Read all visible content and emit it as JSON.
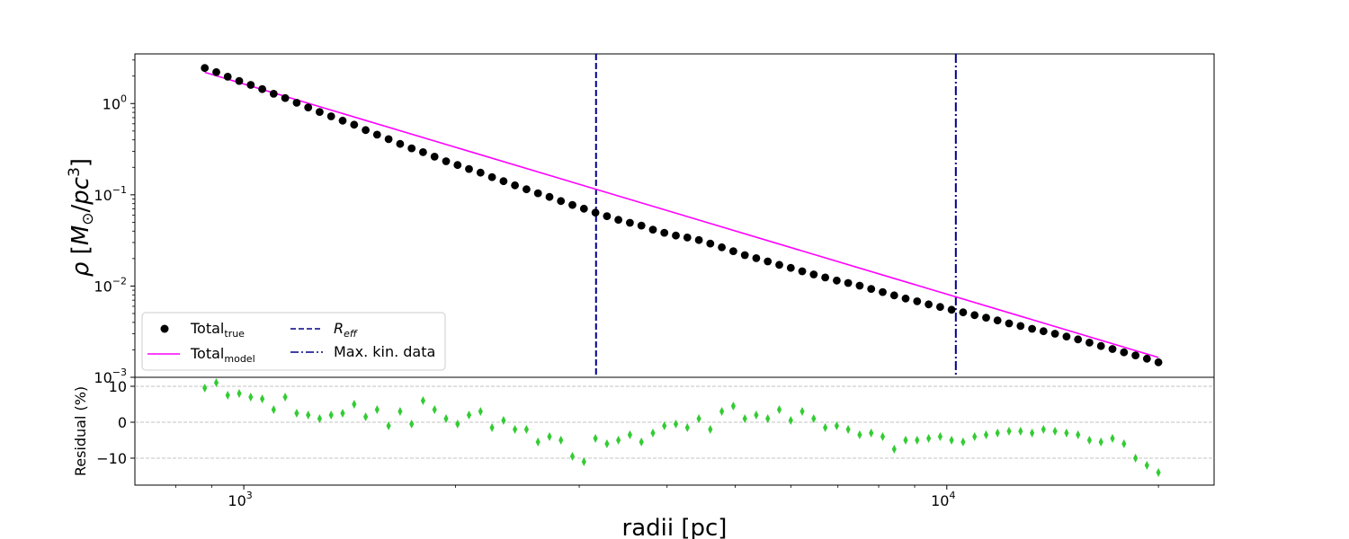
{
  "chart_data": [
    {
      "type": "scatter",
      "panel": "main",
      "xscale": "log",
      "yscale": "log",
      "xlim": [
        700,
        24000
      ],
      "ylim": [
        0.001,
        3.5
      ],
      "xlabel": "radii [pc]",
      "ylabel": "ρ [M⊙/pc³]",
      "yticks": [
        {
          "value": 1,
          "base": "10",
          "exp": "0"
        },
        {
          "value": 0.1,
          "base": "10",
          "exp": "−1"
        },
        {
          "value": 0.01,
          "base": "10",
          "exp": "−2"
        },
        {
          "value": 0.001,
          "base": "10",
          "exp": "−3"
        }
      ],
      "x_start": 880,
      "x_end": 20000,
      "n_points": 84,
      "series": [
        {
          "name": "Total",
          "name_sub": "true",
          "kind": "points",
          "color": "#000000",
          "y": [
            2.45,
            2.21,
            1.97,
            1.77,
            1.6,
            1.44,
            1.28,
            1.15,
            1.02,
            0.906,
            0.81,
            0.725,
            0.65,
            0.586,
            0.512,
            0.456,
            0.407,
            0.361,
            0.323,
            0.293,
            0.262,
            0.233,
            0.212,
            0.192,
            0.175,
            0.156,
            0.141,
            0.127,
            0.115,
            0.104,
            0.0947,
            0.0854,
            0.0775,
            0.0704,
            0.0637,
            0.0583,
            0.0532,
            0.0494,
            0.046,
            0.0415,
            0.0384,
            0.0358,
            0.034,
            0.0319,
            0.0292,
            0.0266,
            0.0241,
            0.0218,
            0.0202,
            0.0186,
            0.0171,
            0.0158,
            0.0145,
            0.0134,
            0.0124,
            0.0115,
            0.0108,
            0.0101,
            0.0093,
            0.0086,
            0.0079,
            0.0073,
            0.0068,
            0.0063,
            0.0059,
            0.0055,
            0.00515,
            0.0048,
            0.0045,
            0.0042,
            0.0039,
            0.00365,
            0.0034,
            0.0032,
            0.003,
            0.0028,
            0.0026,
            0.0024,
            0.0022,
            0.00204,
            0.00188,
            0.00174,
            0.0016,
            0.00146
          ]
        },
        {
          "name": "Total",
          "name_sub": "model",
          "kind": "line",
          "color": "#ff00ff",
          "x": [
            880,
            20000
          ],
          "y": [
            2.2,
            0.00165
          ]
        },
        {
          "name": "R",
          "name_sub": "eff",
          "kind": "vline-dashed",
          "color": "#00008b",
          "x": 3170
        },
        {
          "name": "Max. kin. data",
          "kind": "vline-dashdot",
          "color": "#00008b",
          "x": 10300
        }
      ],
      "legend": "lower-left"
    },
    {
      "type": "scatter",
      "panel": "residual",
      "xscale": "log",
      "xlim": [
        700,
        24000
      ],
      "ylim": [
        -17.5,
        12.5
      ],
      "xticks": [
        {
          "value": 1000,
          "base": "10",
          "exp": "3"
        },
        {
          "value": 10000,
          "base": "10",
          "exp": "4"
        }
      ],
      "yticks": [
        {
          "value": 10,
          "label": "10"
        },
        {
          "value": 0,
          "label": "0"
        },
        {
          "value": -10,
          "label": "−10"
        }
      ],
      "ylabel": "Residual (%)",
      "grid_y": [
        10,
        0,
        -10
      ],
      "marker": "thin_diamond",
      "color": "#33cc33",
      "y": [
        9.5,
        11,
        7.5,
        8,
        7,
        6.5,
        3.5,
        7,
        2.5,
        2,
        1,
        2,
        2.5,
        5,
        1.5,
        3.5,
        -1,
        3,
        -0.5,
        6,
        3.5,
        1,
        -0.5,
        2,
        3,
        -1.5,
        0.5,
        -2,
        -2,
        -5.5,
        -4,
        -5,
        -9.5,
        -11,
        -4.5,
        -6,
        -5,
        -3.5,
        -5.5,
        -3,
        -1,
        -0.5,
        -1.5,
        1,
        -2,
        3,
        4.5,
        1,
        2,
        1,
        3.5,
        0.5,
        3,
        1,
        -1.5,
        -1,
        -2,
        -3.5,
        -3,
        -4,
        -7.5,
        -5,
        -5,
        -4.5,
        -4,
        -5,
        -5.5,
        -4,
        -3.5,
        -3,
        -2.5,
        -2.5,
        -3,
        -2,
        -2.5,
        -3,
        -3.5,
        -5,
        -5.5,
        -4.5,
        -6,
        -10,
        -12,
        -14
      ]
    }
  ]
}
